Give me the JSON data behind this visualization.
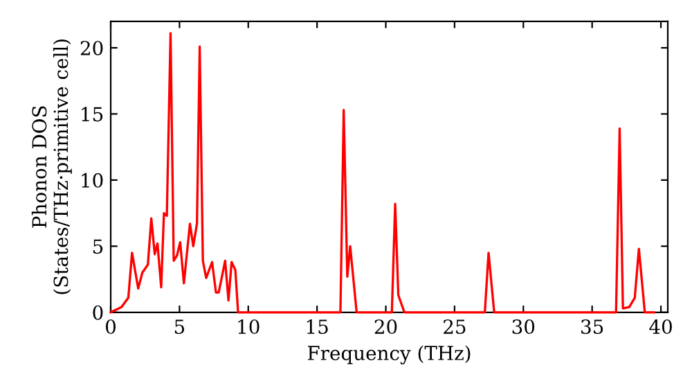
{
  "chart_data": {
    "type": "line",
    "xlabel": "Frequency (THz)",
    "ylabel": "Phonon DOS\n(States/THz·primitive cell)",
    "xlim": [
      0,
      40.5
    ],
    "ylim": [
      0,
      22
    ],
    "xticks": [
      0,
      5,
      10,
      15,
      20,
      25,
      30,
      35,
      40
    ],
    "yticks": [
      0,
      5,
      10,
      15,
      20
    ],
    "grid": false,
    "legend": false,
    "series": [
      {
        "color": "#ff0000",
        "x": [
          0,
          0.78,
          1.28,
          1.55,
          2.0,
          2.3,
          2.7,
          2.95,
          3.2,
          3.4,
          3.67,
          3.87,
          4.08,
          4.35,
          4.58,
          4.82,
          5.05,
          5.32,
          5.76,
          6.0,
          6.27,
          6.47,
          6.7,
          6.94,
          7.37,
          7.65,
          7.85,
          8.32,
          8.56,
          8.79,
          9.06,
          9.26,
          16.7,
          16.94,
          17.2,
          17.41,
          17.88,
          20.44,
          20.68,
          20.91,
          21.35,
          27.2,
          27.47,
          27.88,
          36.74,
          37.0,
          37.24,
          37.7,
          38.1,
          38.4,
          38.83,
          39.5
        ],
        "values": [
          0,
          0.4,
          1.1,
          4.5,
          1.8,
          3.0,
          3.6,
          7.1,
          4.4,
          5.2,
          1.9,
          7.5,
          7.3,
          21.1,
          3.9,
          4.3,
          5.3,
          2.2,
          6.7,
          5.0,
          6.7,
          20.1,
          3.9,
          2.6,
          3.8,
          1.5,
          1.5,
          3.9,
          0.9,
          3.8,
          3.2,
          0,
          0,
          15.3,
          2.7,
          5.0,
          0,
          0,
          8.2,
          1.3,
          0,
          0,
          4.5,
          0,
          0,
          13.9,
          0.3,
          0.4,
          1.1,
          4.8,
          0,
          0
        ]
      }
    ]
  }
}
